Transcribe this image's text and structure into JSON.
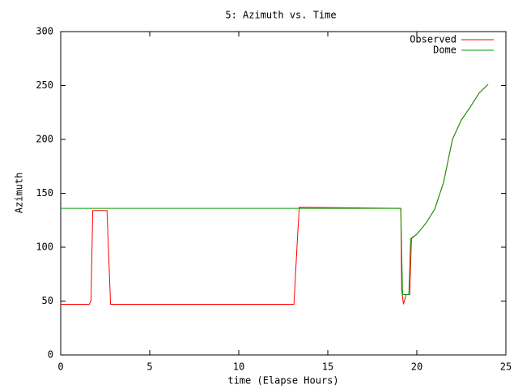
{
  "chart_data": {
    "type": "line",
    "title": "5: Azimuth vs. Time",
    "xlabel": "time (Elapse Hours)",
    "ylabel": "Azimuth",
    "xlim": [
      0,
      25
    ],
    "xticks": [
      0,
      5,
      10,
      15,
      20,
      25
    ],
    "ylim": [
      0,
      300
    ],
    "yticks": [
      0,
      50,
      100,
      150,
      200,
      250,
      300
    ],
    "legend": "top-right",
    "series": [
      {
        "name": "Observed",
        "color": "#ff0000",
        "x": [
          0,
          1.6,
          1.7,
          1.8,
          2.6,
          2.7,
          2.8,
          13.1,
          13.3,
          13.4,
          19.1,
          19.15,
          19.25,
          19.4,
          19.6,
          19.7,
          20,
          20.5,
          21,
          21.5,
          22,
          22.5,
          23,
          23.5,
          24
        ],
        "values": [
          47,
          47,
          50,
          134,
          134,
          90,
          47,
          47,
          110,
          137,
          136,
          60,
          47,
          56,
          56,
          108,
          112,
          122,
          135,
          160,
          200,
          218,
          230,
          243,
          251
        ]
      },
      {
        "name": "Dome",
        "color": "#00a000",
        "x": [
          0,
          19.1,
          19.2,
          19.55,
          19.65,
          20,
          20.5,
          21,
          21.5,
          22,
          22.5,
          23,
          23.5,
          24
        ],
        "values": [
          136,
          136,
          56,
          56,
          108,
          112,
          122,
          135,
          160,
          200,
          218,
          230,
          243,
          251
        ]
      }
    ]
  }
}
